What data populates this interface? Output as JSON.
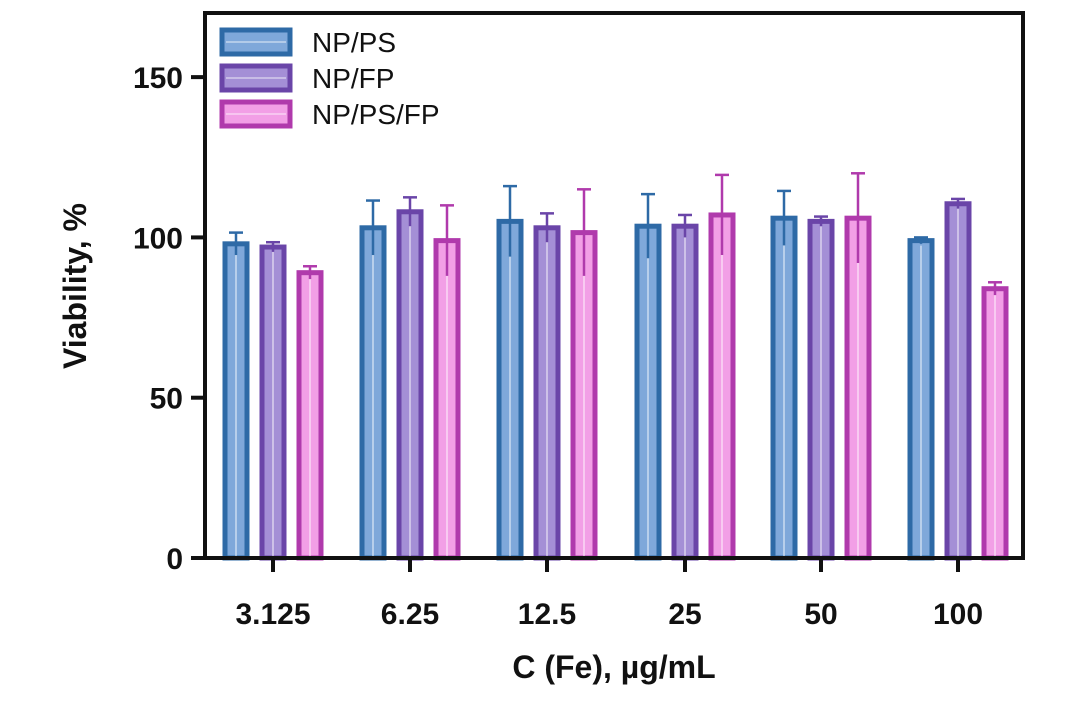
{
  "chart_data": {
    "type": "bar",
    "title": "",
    "xlabel": "C (Fe), µg/mL",
    "ylabel": "Viability, %",
    "ylim": [
      0,
      170
    ],
    "yticks": [
      0,
      50,
      100,
      150
    ],
    "categories": [
      "3.125",
      "6.25",
      "12.5",
      "25",
      "50",
      "100"
    ],
    "legend_position": "top-left",
    "grid": false,
    "error_bars": true,
    "series": [
      {
        "name": "NP/PS",
        "values": [
          98,
          103,
          105,
          103.5,
          106,
          99
        ],
        "errors": [
          3.5,
          8.5,
          11,
          10,
          8.5,
          1
        ],
        "fill": "#7fa8da",
        "stroke": "#2e6aa6"
      },
      {
        "name": "NP/FP",
        "values": [
          97,
          108,
          103,
          103.5,
          105,
          110.5
        ],
        "errors": [
          1.5,
          4.5,
          4.5,
          3.5,
          1.5,
          1.5
        ],
        "fill": "#a48fd6",
        "stroke": "#6a45a8"
      },
      {
        "name": "NP/PS/FP",
        "values": [
          89,
          99,
          101.5,
          107,
          106,
          84
        ],
        "errors": [
          2,
          11,
          13.5,
          12.5,
          14,
          2
        ],
        "fill": "#f29fe6",
        "stroke": "#b03aac"
      }
    ]
  }
}
